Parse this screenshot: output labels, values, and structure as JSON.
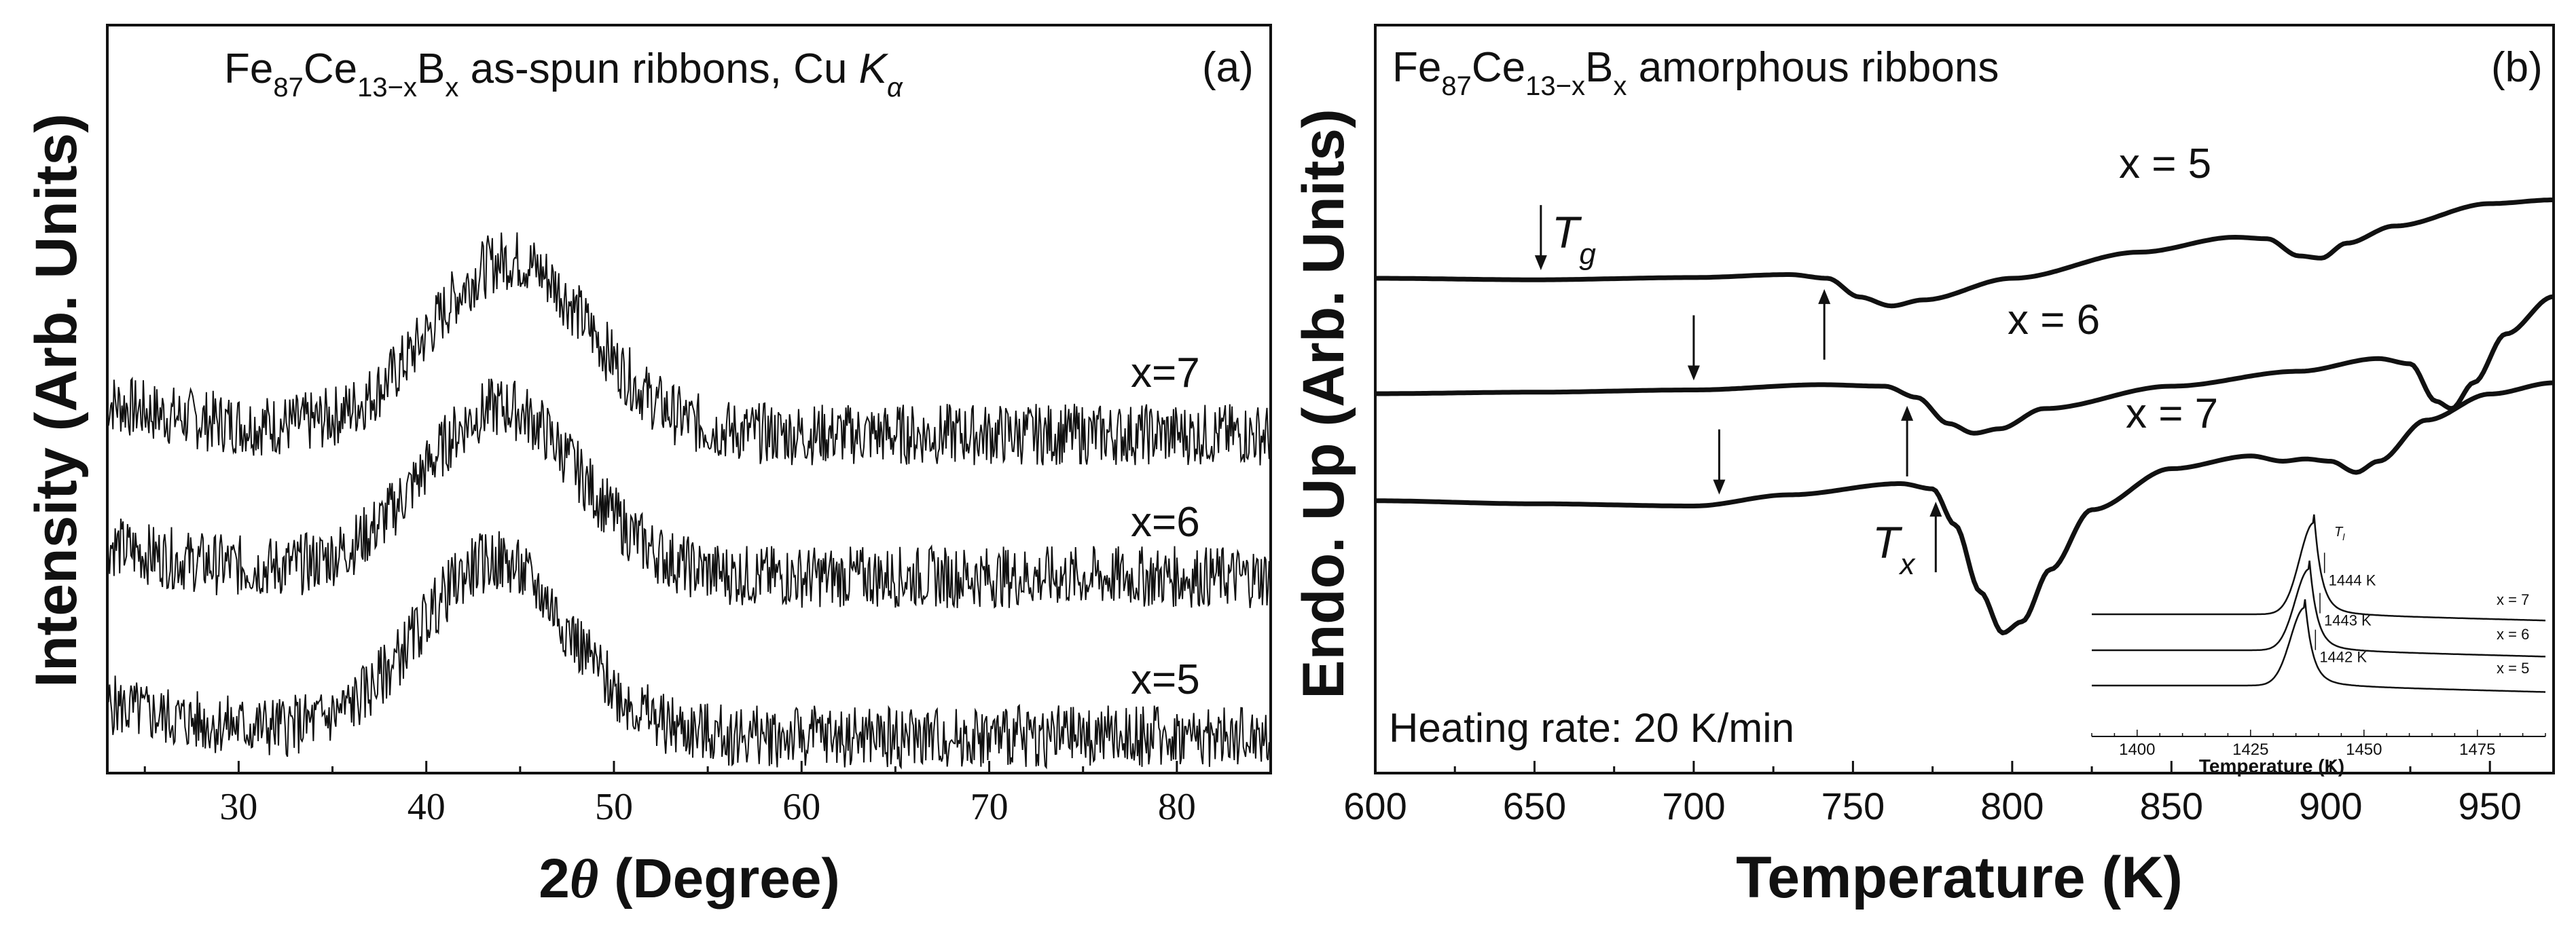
{
  "chart_data": [
    {
      "panel": "(a)",
      "type": "line",
      "title_parts": {
        "base": "Fe",
        "s1": "87",
        "mid": "Ce",
        "s2": "13−x",
        "b": "B",
        "s3": "x",
        "rest": " as-spun ribbons, Cu ",
        "k": "K",
        "alpha": "α"
      },
      "xlabel_theta": "θ",
      "xlabel": " (Degree)",
      "xlabel_prefix": "2",
      "ylabel": "Intensity (Arb. Units)",
      "xlim": [
        23,
        85
      ],
      "xticks": [
        30,
        40,
        50,
        60,
        70,
        80
      ],
      "grid": false,
      "series": [
        {
          "name": "x=7",
          "peak_center": 44.5,
          "peak_width": 4.2,
          "peak_height": 0.95,
          "noise": 0.17,
          "seed": 7
        },
        {
          "name": "x=6",
          "peak_center": 44.0,
          "peak_width": 4.2,
          "peak_height": 0.92,
          "noise": 0.17,
          "seed": 6
        },
        {
          "name": "x=5",
          "peak_center": 43.6,
          "peak_width": 4.0,
          "peak_height": 0.95,
          "noise": 0.17,
          "seed": 5
        }
      ]
    },
    {
      "panel": "(b)",
      "type": "line",
      "title_parts": {
        "base": "Fe",
        "s1": "87",
        "mid": "Ce",
        "s2": "13−x",
        "b": "B",
        "s3": "x",
        "rest": " amorphous ribbons"
      },
      "xlabel": "Temperature (K)",
      "ylabel": "Endo. Up (Arb. Units)",
      "xlim": [
        600,
        970
      ],
      "xticks": [
        600,
        650,
        700,
        750,
        800,
        850,
        900,
        950
      ],
      "grid": false,
      "annotation": "Heating rate: 20 K/min",
      "tg_label": "T",
      "tg_sub": "g",
      "tx_label": "T",
      "tx_sub": "x",
      "series": [
        {
          "name": "x = 5",
          "tg": 652,
          "tx": 741,
          "points": [
            [
              600,
              2.35
            ],
            [
              650,
              2.33
            ],
            [
              700,
              2.36
            ],
            [
              730,
              2.4
            ],
            [
              742,
              2.35
            ],
            [
              752,
              2.1
            ],
            [
              762,
              1.98
            ],
            [
              772,
              2.06
            ],
            [
              800,
              2.35
            ],
            [
              840,
              2.7
            ],
            [
              870,
              2.9
            ],
            [
              880,
              2.88
            ],
            [
              890,
              2.65
            ],
            [
              897,
              2.62
            ],
            [
              905,
              2.82
            ],
            [
              920,
              3.05
            ],
            [
              950,
              3.35
            ],
            [
              970,
              3.4
            ]
          ]
        },
        {
          "name": "x = 6",
          "tg": 700,
          "tx": 767,
          "points": [
            [
              600,
              1.15
            ],
            [
              650,
              1.17
            ],
            [
              700,
              1.2
            ],
            [
              740,
              1.27
            ],
            [
              760,
              1.25
            ],
            [
              770,
              1.1
            ],
            [
              780,
              0.75
            ],
            [
              788,
              0.62
            ],
            [
              796,
              0.68
            ],
            [
              810,
              0.95
            ],
            [
              850,
              1.25
            ],
            [
              890,
              1.45
            ],
            [
              915,
              1.62
            ],
            [
              925,
              1.55
            ],
            [
              933,
              1.05
            ],
            [
              938,
              0.95
            ],
            [
              945,
              1.3
            ],
            [
              955,
              1.95
            ],
            [
              970,
              2.45
            ]
          ]
        },
        {
          "name": "x = 7",
          "tg": 708,
          "tx": 776,
          "points": [
            [
              600,
              0.02
            ],
            [
              650,
              -0.02
            ],
            [
              700,
              -0.05
            ],
            [
              730,
              0.1
            ],
            [
              765,
              0.25
            ],
            [
              775,
              0.18
            ],
            [
              782,
              -0.3
            ],
            [
              790,
              -1.2
            ],
            [
              797,
              -1.75
            ],
            [
              803,
              -1.6
            ],
            [
              812,
              -0.9
            ],
            [
              825,
              -0.1
            ],
            [
              850,
              0.45
            ],
            [
              875,
              0.62
            ],
            [
              885,
              0.55
            ],
            [
              892,
              0.58
            ],
            [
              900,
              0.55
            ],
            [
              908,
              0.4
            ],
            [
              915,
              0.55
            ],
            [
              930,
              1.1
            ],
            [
              950,
              1.45
            ],
            [
              970,
              1.6
            ]
          ]
        }
      ]
    },
    {
      "panel": "inset",
      "type": "line",
      "xlabel": "Temperature (K)",
      "xlim": [
        1390,
        1490
      ],
      "xticks": [
        1400,
        1425,
        1450,
        1475
      ],
      "tl_label": "T",
      "tl_sub": "l",
      "series": [
        {
          "name": "x = 7",
          "liquidus_label": "1444 K",
          "peak_t": 1439
        },
        {
          "name": "x = 6",
          "liquidus_label": "1443 K",
          "peak_t": 1438
        },
        {
          "name": "x = 5",
          "liquidus_label": "1442 K",
          "peak_t": 1437
        }
      ]
    }
  ]
}
